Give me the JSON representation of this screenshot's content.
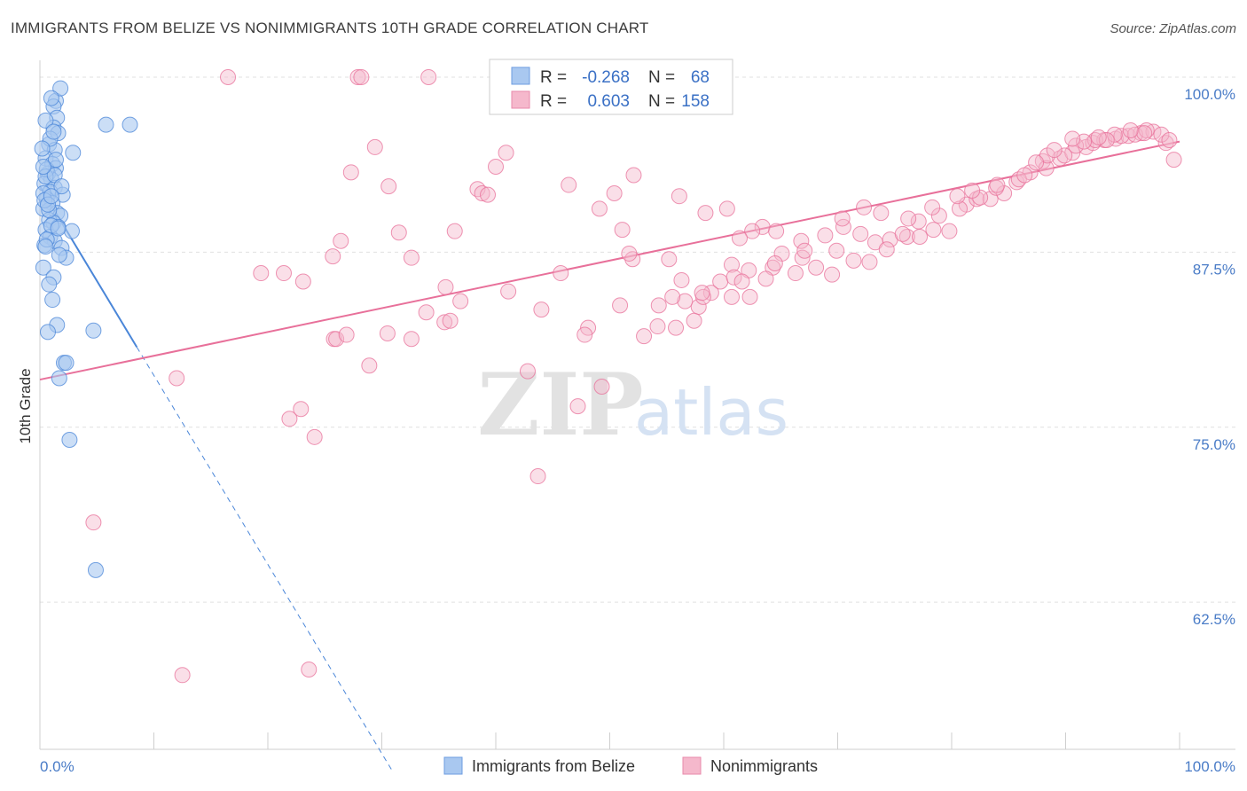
{
  "chart_data": {
    "type": "scatter",
    "title": "IMMIGRANTS FROM BELIZE VS NONIMMIGRANTS 10TH GRADE CORRELATION CHART",
    "source": "Source: ZipAtlas.com",
    "xlabel": "",
    "ylabel": "10th Grade",
    "xlim": [
      0,
      100
    ],
    "ylim": [
      52,
      101.2
    ],
    "x_tick_labels": {
      "left": "0.0%",
      "right": "100.0%"
    },
    "y_ticks": [
      {
        "value": 100,
        "label": "100.0%"
      },
      {
        "value": 87.5,
        "label": "87.5%"
      },
      {
        "value": 75,
        "label": "75.0%"
      },
      {
        "value": 62.5,
        "label": "62.5%"
      }
    ],
    "grid": true,
    "legend_placement": "top-center",
    "watermark": "ZIPatlas",
    "colors": {
      "blue": "#4a86d8",
      "blue_fill": "#a9c8f0",
      "pink": "#e8709a",
      "pink_fill": "#f5b8cc"
    },
    "legend": {
      "r_label": "R =",
      "n_label": "N =",
      "rows": [
        {
          "r": "-0.268",
          "n": "68"
        },
        {
          "r": "0.603",
          "n": "158"
        }
      ]
    },
    "series": [
      {
        "name": "Immigrants from Belize",
        "color": "#4a86d8",
        "trend": {
          "solid_x": [
            0,
            8.5
          ],
          "dashed_x": [
            8.5,
            31
          ],
          "intercept": 92.2,
          "slope": -1.35
        },
        "points": [
          [
            1.4,
            98.3
          ],
          [
            1.8,
            99.2
          ],
          [
            1.2,
            97.9
          ],
          [
            1.0,
            98.5
          ],
          [
            1.5,
            97.1
          ],
          [
            1.2,
            96.4
          ],
          [
            1.6,
            96.0
          ],
          [
            0.8,
            95.2
          ],
          [
            1.3,
            94.8
          ],
          [
            2.9,
            94.6
          ],
          [
            0.5,
            94.2
          ],
          [
            1.1,
            93.8
          ],
          [
            1.4,
            93.5
          ],
          [
            0.7,
            93.1
          ],
          [
            1.0,
            92.7
          ],
          [
            0.4,
            92.4
          ],
          [
            1.3,
            92.1
          ],
          [
            0.9,
            91.8
          ],
          [
            2.0,
            91.6
          ],
          [
            0.6,
            91.3
          ],
          [
            1.1,
            91.0
          ],
          [
            0.3,
            90.6
          ],
          [
            1.5,
            90.3
          ],
          [
            1.8,
            90.1
          ],
          [
            0.8,
            89.8
          ],
          [
            1.2,
            89.6
          ],
          [
            1.6,
            89.3
          ],
          [
            0.5,
            89.1
          ],
          [
            2.8,
            89.0
          ],
          [
            0.9,
            88.6
          ],
          [
            1.3,
            88.3
          ],
          [
            0.4,
            88.0
          ],
          [
            1.9,
            87.8
          ],
          [
            2.3,
            87.1
          ],
          [
            1.7,
            87.3
          ],
          [
            0.3,
            86.4
          ],
          [
            1.2,
            85.7
          ],
          [
            0.8,
            85.2
          ],
          [
            1.1,
            84.1
          ],
          [
            1.5,
            82.3
          ],
          [
            0.7,
            81.8
          ],
          [
            4.7,
            81.9
          ],
          [
            2.1,
            79.6
          ],
          [
            2.3,
            79.6
          ],
          [
            1.7,
            78.5
          ],
          [
            2.6,
            74.1
          ],
          [
            4.9,
            64.8
          ],
          [
            0.6,
            93.4
          ],
          [
            0.9,
            95.6
          ],
          [
            0.3,
            91.7
          ],
          [
            1.0,
            89.4
          ],
          [
            0.2,
            94.9
          ],
          [
            0.5,
            92.9
          ],
          [
            1.3,
            93.0
          ],
          [
            0.8,
            90.5
          ],
          [
            1.4,
            94.1
          ],
          [
            0.6,
            88.4
          ],
          [
            0.4,
            91.2
          ],
          [
            1.9,
            92.2
          ],
          [
            0.5,
            96.9
          ],
          [
            1.2,
            96.1
          ],
          [
            0.7,
            90.9
          ],
          [
            1.6,
            89.2
          ],
          [
            0.3,
            93.6
          ],
          [
            5.8,
            96.6
          ],
          [
            7.9,
            96.6
          ],
          [
            1.0,
            91.5
          ],
          [
            0.5,
            87.9
          ]
        ]
      },
      {
        "name": "Nonimmigrants",
        "color": "#e8709a",
        "trend": {
          "x": [
            0,
            100
          ],
          "intercept": 78.4,
          "slope": 0.17
        },
        "points": [
          [
            16.5,
            100
          ],
          [
            27.9,
            100
          ],
          [
            28.2,
            100
          ],
          [
            34.1,
            100
          ],
          [
            29.4,
            95.0
          ],
          [
            27.3,
            93.2
          ],
          [
            30.6,
            92.2
          ],
          [
            38.4,
            92.0
          ],
          [
            40.0,
            93.6
          ],
          [
            40.9,
            94.6
          ],
          [
            46.4,
            92.3
          ],
          [
            49.1,
            90.6
          ],
          [
            52.1,
            93.0
          ],
          [
            50.4,
            91.7
          ],
          [
            56.1,
            91.5
          ],
          [
            58.4,
            90.3
          ],
          [
            60.3,
            90.6
          ],
          [
            63.4,
            89.3
          ],
          [
            64.6,
            89.0
          ],
          [
            66.3,
            86.0
          ],
          [
            62.5,
            89.0
          ],
          [
            61.4,
            88.5
          ],
          [
            38.8,
            91.7
          ],
          [
            39.3,
            91.6
          ],
          [
            36.4,
            89.0
          ],
          [
            31.5,
            88.9
          ],
          [
            26.4,
            88.3
          ],
          [
            23.1,
            85.4
          ],
          [
            19.4,
            86.0
          ],
          [
            21.4,
            86.0
          ],
          [
            25.7,
            87.2
          ],
          [
            32.6,
            87.1
          ],
          [
            35.6,
            85.0
          ],
          [
            33.9,
            83.2
          ],
          [
            36.9,
            84.0
          ],
          [
            35.5,
            82.5
          ],
          [
            41.1,
            84.7
          ],
          [
            44.0,
            83.4
          ],
          [
            45.7,
            86.0
          ],
          [
            51.1,
            89.1
          ],
          [
            52.0,
            87.0
          ],
          [
            51.7,
            87.4
          ],
          [
            55.2,
            87.0
          ],
          [
            56.3,
            85.5
          ],
          [
            58.9,
            84.6
          ],
          [
            57.8,
            83.6
          ],
          [
            54.2,
            82.2
          ],
          [
            50.9,
            83.7
          ],
          [
            48.1,
            82.1
          ],
          [
            47.8,
            81.6
          ],
          [
            25.8,
            81.3
          ],
          [
            26.0,
            81.3
          ],
          [
            26.9,
            81.6
          ],
          [
            28.9,
            79.4
          ],
          [
            30.5,
            81.7
          ],
          [
            32.6,
            81.3
          ],
          [
            36.0,
            82.6
          ],
          [
            42.8,
            79.0
          ],
          [
            47.2,
            76.5
          ],
          [
            49.3,
            77.9
          ],
          [
            58.2,
            84.3
          ],
          [
            60.7,
            84.3
          ],
          [
            62.3,
            84.3
          ],
          [
            64.3,
            86.4
          ],
          [
            66.8,
            88.3
          ],
          [
            69.9,
            87.6
          ],
          [
            70.5,
            89.3
          ],
          [
            72.0,
            88.8
          ],
          [
            73.3,
            88.2
          ],
          [
            74.6,
            88.4
          ],
          [
            76.1,
            88.6
          ],
          [
            77.2,
            88.6
          ],
          [
            78.4,
            89.1
          ],
          [
            79.8,
            89.0
          ],
          [
            81.3,
            90.9
          ],
          [
            82.2,
            91.3
          ],
          [
            83.4,
            91.3
          ],
          [
            84.6,
            91.7
          ],
          [
            85.7,
            92.5
          ],
          [
            86.9,
            93.2
          ],
          [
            88.0,
            94.0
          ],
          [
            89.5,
            94.2
          ],
          [
            90.6,
            94.6
          ],
          [
            91.8,
            95.0
          ],
          [
            92.4,
            95.3
          ],
          [
            93.4,
            95.5
          ],
          [
            94.4,
            95.6
          ],
          [
            95.5,
            95.8
          ],
          [
            96.6,
            96.0
          ],
          [
            97.7,
            96.1
          ],
          [
            98.8,
            95.3
          ],
          [
            99.5,
            94.1
          ],
          [
            89.9,
            94.4
          ],
          [
            88.3,
            93.5
          ],
          [
            85.9,
            92.7
          ],
          [
            83.9,
            92.1
          ],
          [
            82.5,
            91.4
          ],
          [
            80.7,
            90.6
          ],
          [
            78.9,
            90.1
          ],
          [
            77.1,
            89.7
          ],
          [
            75.7,
            88.8
          ],
          [
            74.3,
            87.7
          ],
          [
            72.8,
            86.8
          ],
          [
            71.4,
            86.9
          ],
          [
            69.5,
            85.9
          ],
          [
            68.1,
            86.4
          ],
          [
            66.9,
            87.1
          ],
          [
            65.1,
            87.4
          ],
          [
            63.7,
            85.6
          ],
          [
            62.2,
            86.2
          ],
          [
            60.7,
            86.6
          ],
          [
            59.7,
            85.4
          ],
          [
            58.1,
            84.6
          ],
          [
            56.6,
            84.0
          ],
          [
            55.5,
            84.3
          ],
          [
            54.3,
            83.7
          ],
          [
            53.0,
            81.5
          ],
          [
            55.8,
            82.1
          ],
          [
            57.4,
            82.6
          ],
          [
            60.9,
            85.7
          ],
          [
            61.6,
            85.4
          ],
          [
            64.5,
            86.7
          ],
          [
            67.1,
            87.6
          ],
          [
            68.9,
            88.7
          ],
          [
            70.4,
            89.9
          ],
          [
            72.3,
            90.7
          ],
          [
            73.8,
            90.3
          ],
          [
            76.2,
            89.9
          ],
          [
            78.3,
            90.7
          ],
          [
            80.5,
            91.5
          ],
          [
            81.8,
            91.9
          ],
          [
            84.0,
            92.3
          ],
          [
            86.4,
            93.0
          ],
          [
            88.4,
            94.4
          ],
          [
            90.9,
            95.1
          ],
          [
            92.6,
            95.5
          ],
          [
            94.9,
            95.8
          ],
          [
            96.1,
            95.9
          ],
          [
            97.1,
            96.2
          ],
          [
            98.4,
            95.9
          ],
          [
            99.1,
            95.5
          ],
          [
            96.9,
            96.0
          ],
          [
            95.7,
            96.2
          ],
          [
            94.3,
            95.9
          ],
          [
            93.6,
            95.5
          ],
          [
            92.9,
            95.7
          ],
          [
            91.6,
            95.4
          ],
          [
            90.6,
            95.6
          ],
          [
            89.0,
            94.8
          ],
          [
            87.4,
            93.9
          ],
          [
            12.0,
            78.5
          ],
          [
            21.9,
            75.6
          ],
          [
            22.9,
            76.3
          ],
          [
            24.1,
            74.3
          ],
          [
            43.7,
            71.5
          ],
          [
            4.7,
            68.2
          ],
          [
            12.5,
            57.3
          ],
          [
            23.6,
            57.7
          ]
        ]
      }
    ]
  },
  "bottom_legend": [
    "Immigrants from Belize",
    "Nonimmigrants"
  ]
}
